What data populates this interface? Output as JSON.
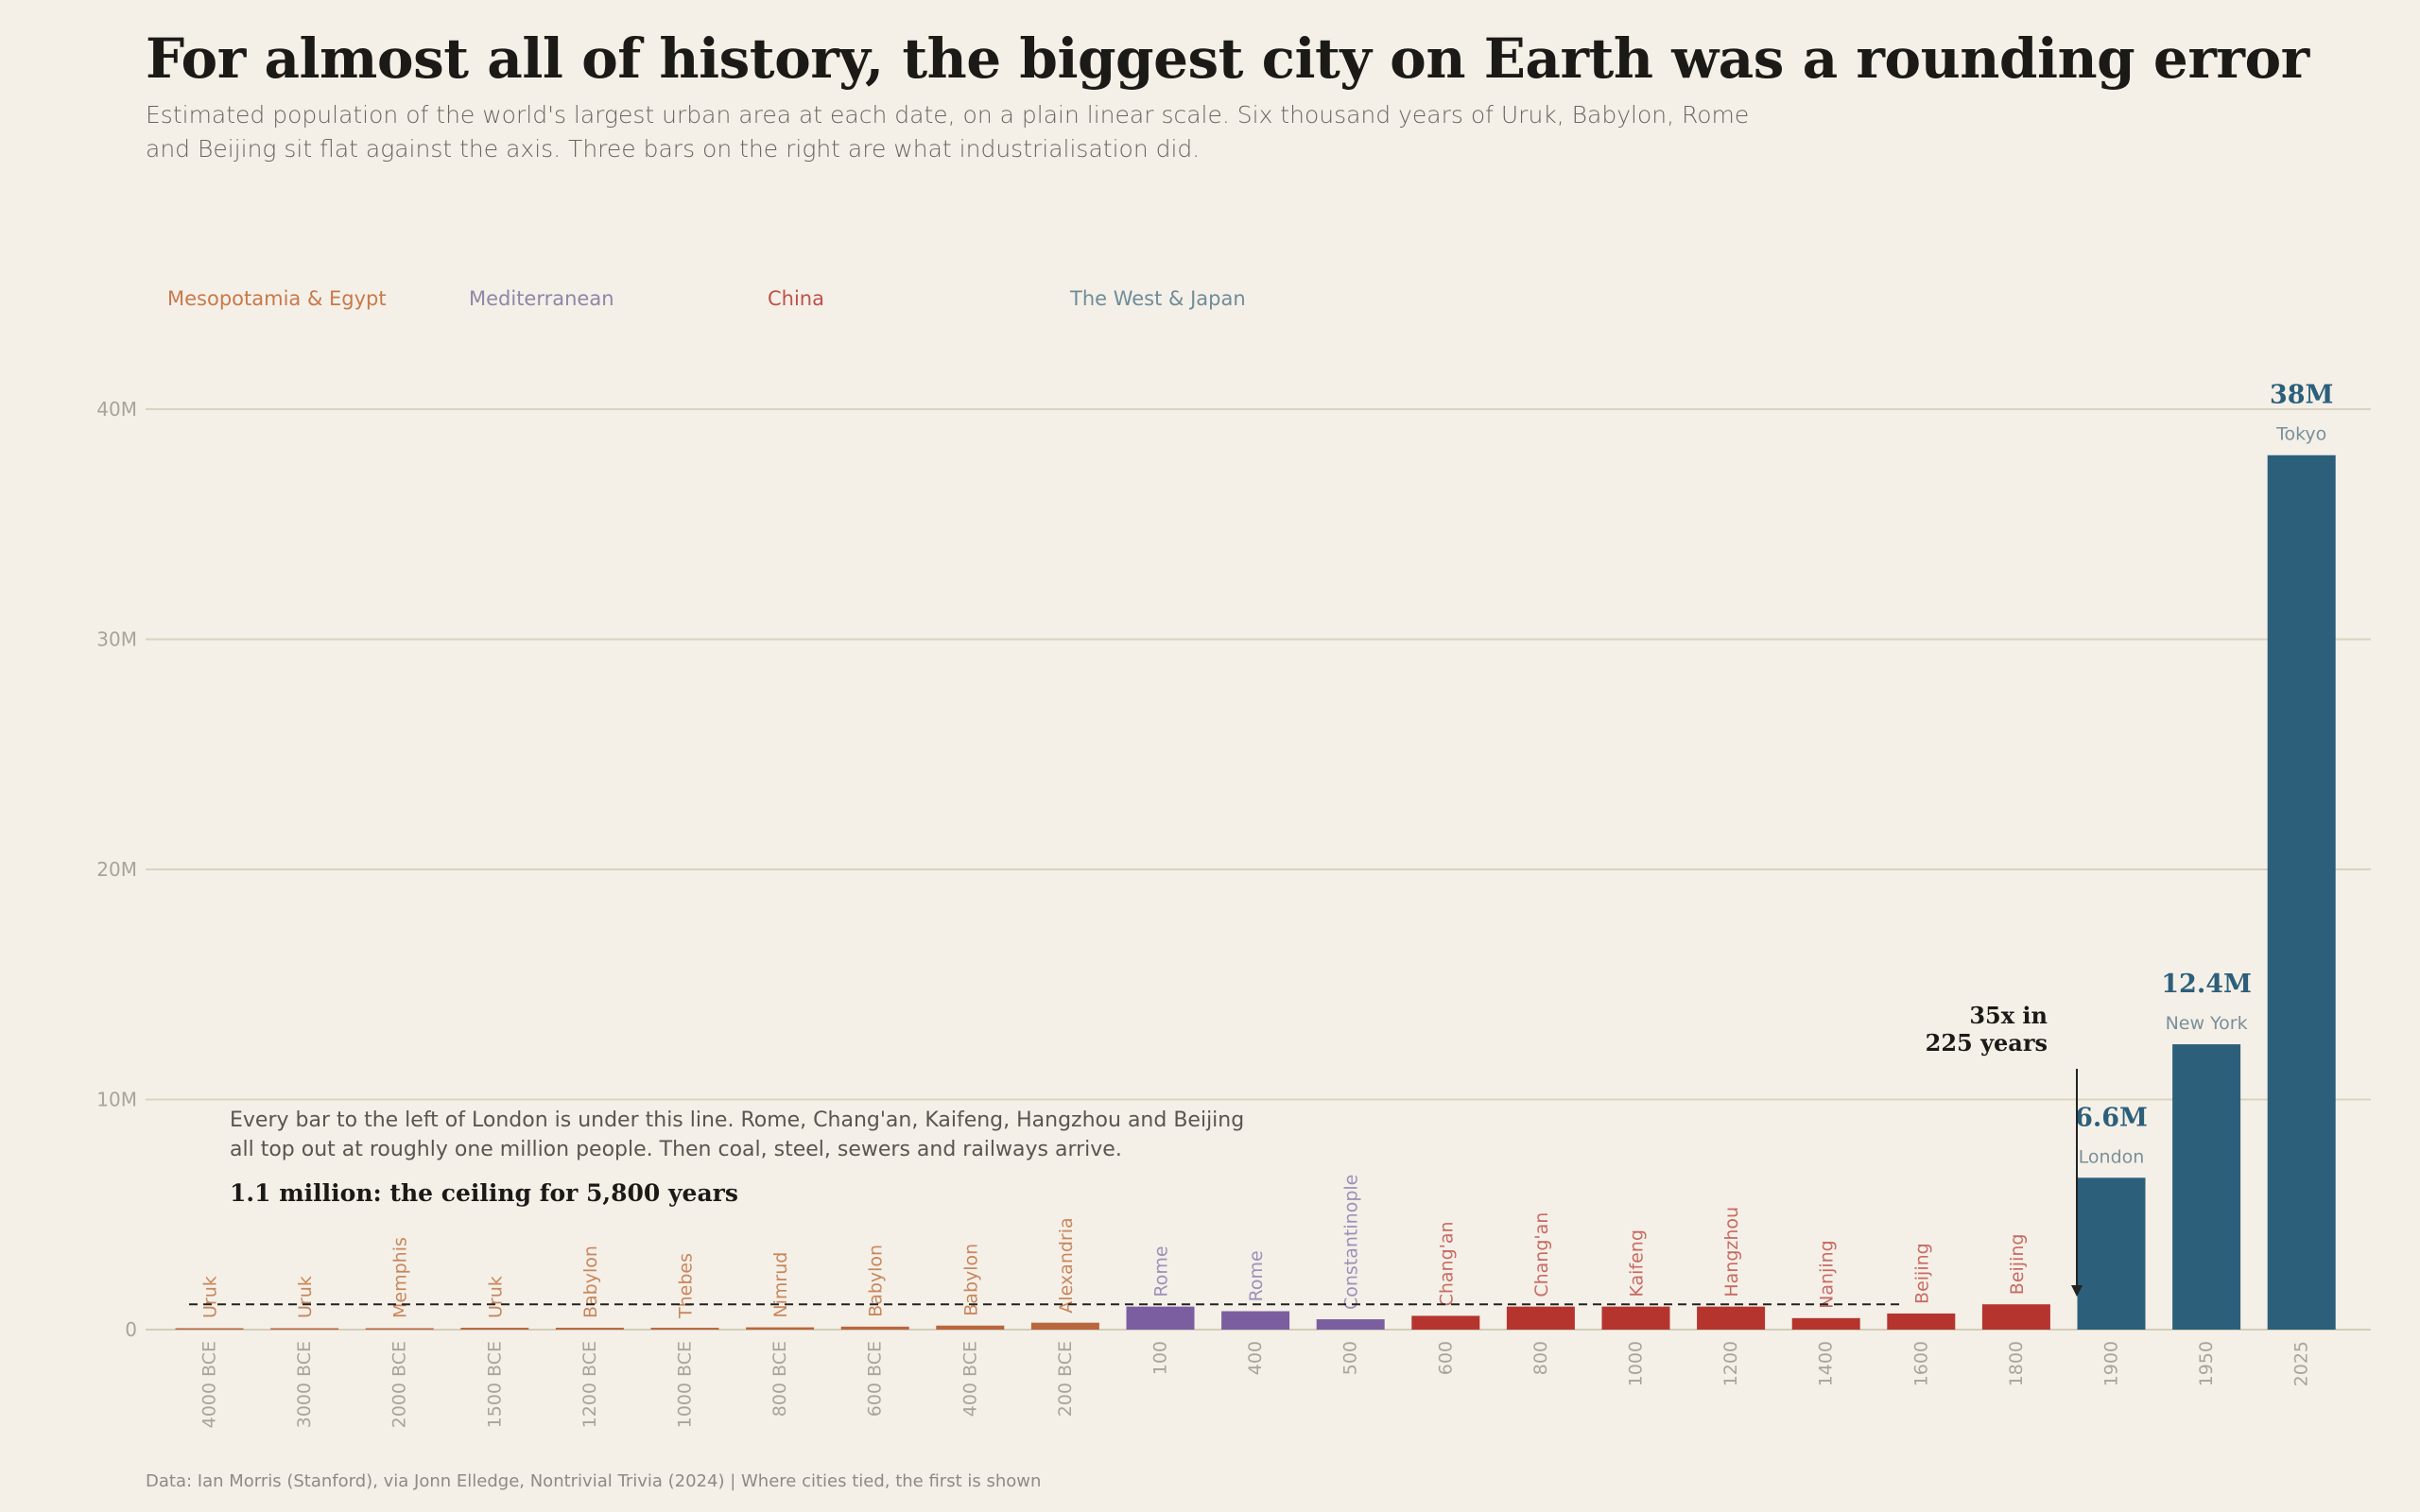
{
  "header": {
    "title": "For almost all of history, the biggest city on Earth was a rounding error",
    "subtitle": "Estimated population of the world's largest urban area at each date, on a plain linear scale. Six thousand years of Uruk, Babylon, Rome and Beijing sit flat against the axis. Three bars on the right are what industrialisation did."
  },
  "legend": [
    {
      "label": "Mesopotamia & Egypt",
      "color": "#c9794a"
    },
    {
      "label": "Mediterranean",
      "color": "#8f86a8"
    },
    {
      "label": "China",
      "color": "#c0504a"
    },
    {
      "label": "The West & Japan",
      "color": "#6f8c99"
    }
  ],
  "annotations": {
    "ceiling_note": "Every bar to the left of London is under this line. Rome, Chang'an, Kaifeng, Hangzhou and Beijing all top out at roughly one million people. Then coal, steel, sewers and railways arrive.",
    "ceiling_label": "1.1 million: the ceiling for 5,800 years",
    "growth_label_line1": "35x in",
    "growth_label_line2": "225 years"
  },
  "source": "Data: Ian Morris (Stanford), via Jonn Elledge, Nontrivial Trivia (2024)  |  Where cities tied, the first is shown",
  "chart_data": {
    "type": "bar",
    "ylim": [
      0,
      40
    ],
    "yunit": "M",
    "yticks": [
      "0",
      "10M",
      "20M",
      "30M",
      "40M"
    ],
    "ceiling": 1.1,
    "region_colors": {
      "mesopotamia": "#b8663c",
      "mediterranean": "#7b5ea0",
      "china": "#b5352e",
      "west": "#2c5f7a"
    },
    "region_label_colors": {
      "mesopotamia": "#c9865c",
      "mediterranean": "#9d90b8",
      "china": "#c86a62",
      "west": "#7a8f99"
    },
    "categories": [
      "4000 BCE",
      "3000 BCE",
      "2000 BCE",
      "1500 BCE",
      "1200 BCE",
      "1000 BCE",
      "800 BCE",
      "600 BCE",
      "400 BCE",
      "200 BCE",
      "100",
      "400",
      "500",
      "600",
      "800",
      "1000",
      "1200",
      "1400",
      "1600",
      "1800",
      "1900",
      "1950",
      "2025"
    ],
    "cities": [
      "Uruk",
      "Uruk",
      "Memphis",
      "Uruk",
      "Babylon",
      "Thebes",
      "Nimrud",
      "Babylon",
      "Babylon",
      "Alexandria",
      "Rome",
      "Rome",
      "Constantinople",
      "Chang'an",
      "Chang'an",
      "Kaifeng",
      "Hangzhou",
      "Nanjing",
      "Beijing",
      "Beijing",
      "London",
      "New York",
      "Tokyo"
    ],
    "regions": [
      "mesopotamia",
      "mesopotamia",
      "mesopotamia",
      "mesopotamia",
      "mesopotamia",
      "mesopotamia",
      "mesopotamia",
      "mesopotamia",
      "mesopotamia",
      "mesopotamia",
      "mediterranean",
      "mediterranean",
      "mediterranean",
      "china",
      "china",
      "china",
      "china",
      "china",
      "china",
      "china",
      "west",
      "west",
      "west"
    ],
    "values": [
      0.005,
      0.045,
      0.06,
      0.08,
      0.08,
      0.08,
      0.1,
      0.13,
      0.175,
      0.3,
      1.0,
      0.8,
      0.45,
      0.6,
      1.0,
      1.0,
      1.0,
      0.5,
      0.7,
      1.1,
      6.6,
      12.4,
      38
    ],
    "value_labels": {
      "20": "6.6M",
      "21": "12.4M",
      "22": "38M"
    }
  }
}
